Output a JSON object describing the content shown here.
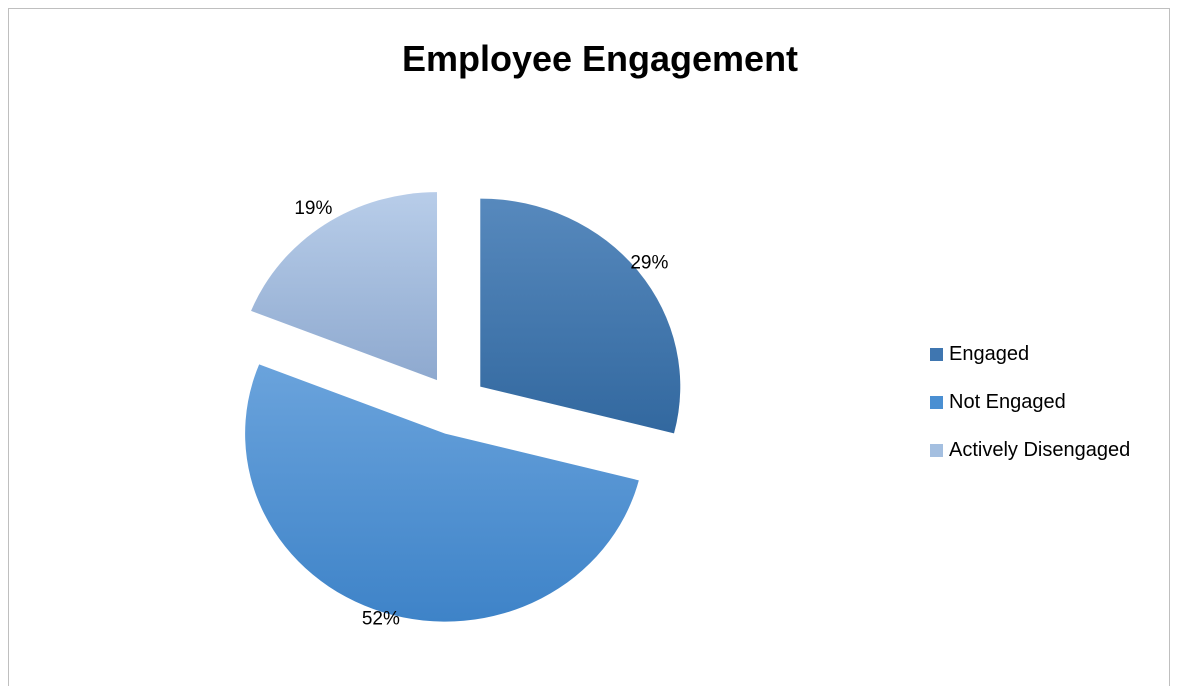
{
  "chart_data": {
    "type": "pie",
    "title": "Employee Engagement",
    "categories": [
      "Engaged",
      "Not Engaged",
      "Actively Disengaged"
    ],
    "values": [
      29,
      52,
      19
    ],
    "labels": [
      "29%",
      "52%",
      "19%"
    ],
    "colors": [
      "#3f76b0",
      "#4a8fd2",
      "#a4bfe0"
    ],
    "exploded": true,
    "legend_position": "right"
  }
}
